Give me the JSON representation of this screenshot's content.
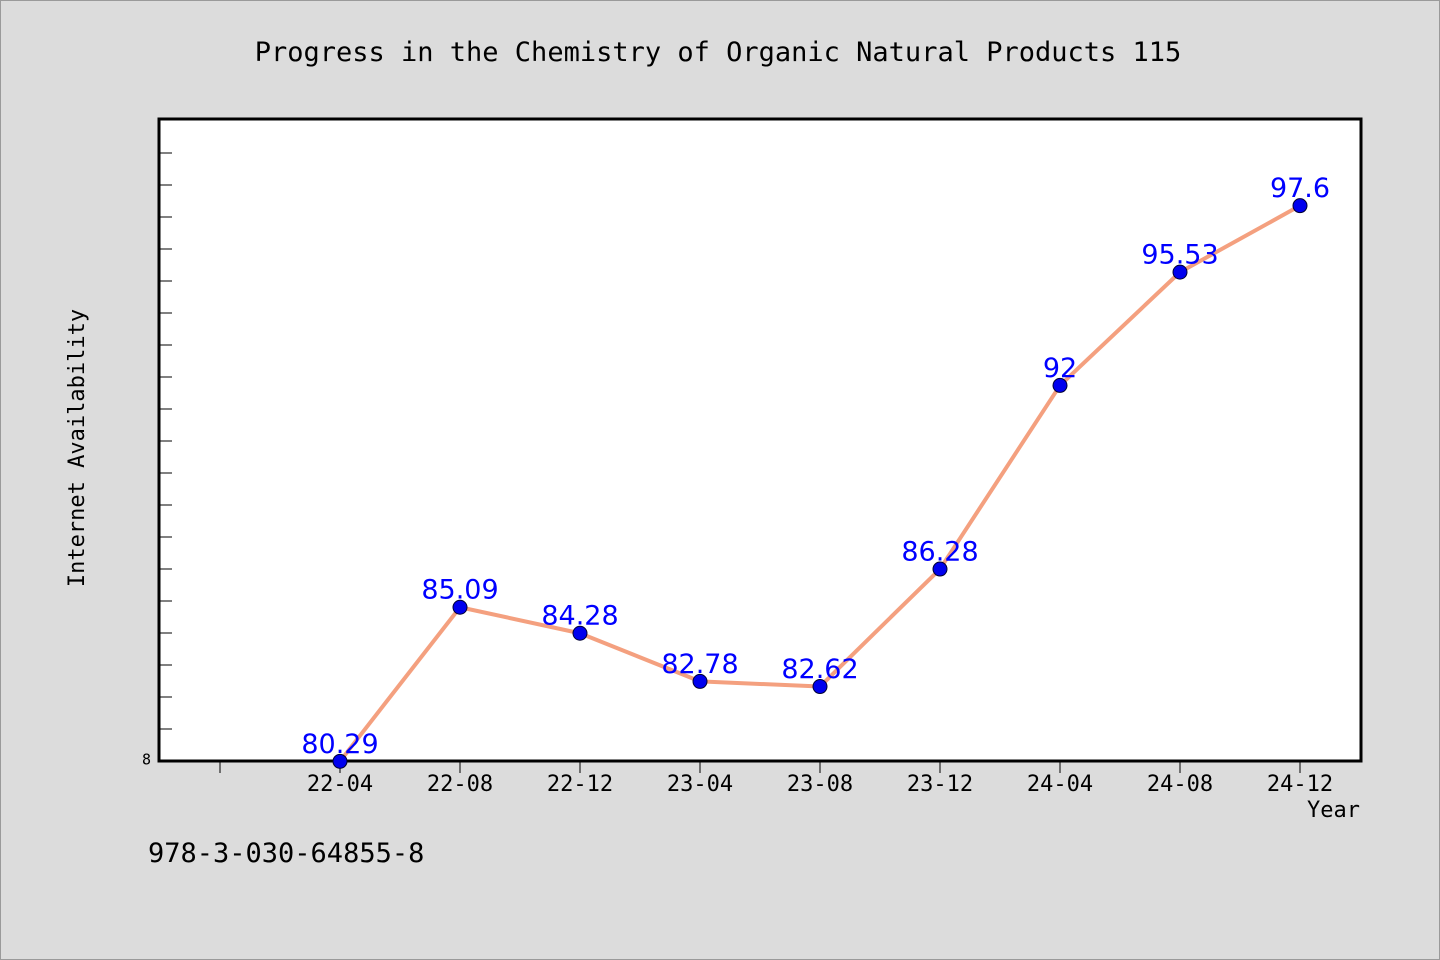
{
  "chart_data": {
    "type": "line",
    "title": "Progress in the Chemistry of Organic Natural Products 115",
    "xlabel": "Year",
    "ylabel": "Internet Availability",
    "categories": [
      "22-04",
      "22-08",
      "22-12",
      "23-04",
      "23-08",
      "23-12",
      "24-04",
      "24-08",
      "24-12"
    ],
    "series": [
      {
        "values": [
          80.29,
          85.09,
          84.28,
          82.78,
          82.62,
          86.28,
          92,
          95.53,
          97.6
        ],
        "labels": [
          "80.29",
          "85.09",
          "84.28",
          "82.78",
          "82.62",
          "86.28",
          "92",
          "95.53",
          "97.6"
        ],
        "line_color": "#f4a07f",
        "marker_color": "#0000ee",
        "label_color": "#0000ff"
      }
    ],
    "ylim": [
      80.3,
      100.3
    ],
    "y_tick_labels": [
      "8"
    ],
    "grid": false,
    "legend": "none"
  },
  "footer": {
    "isbn": "978-3-030-64855-8"
  }
}
